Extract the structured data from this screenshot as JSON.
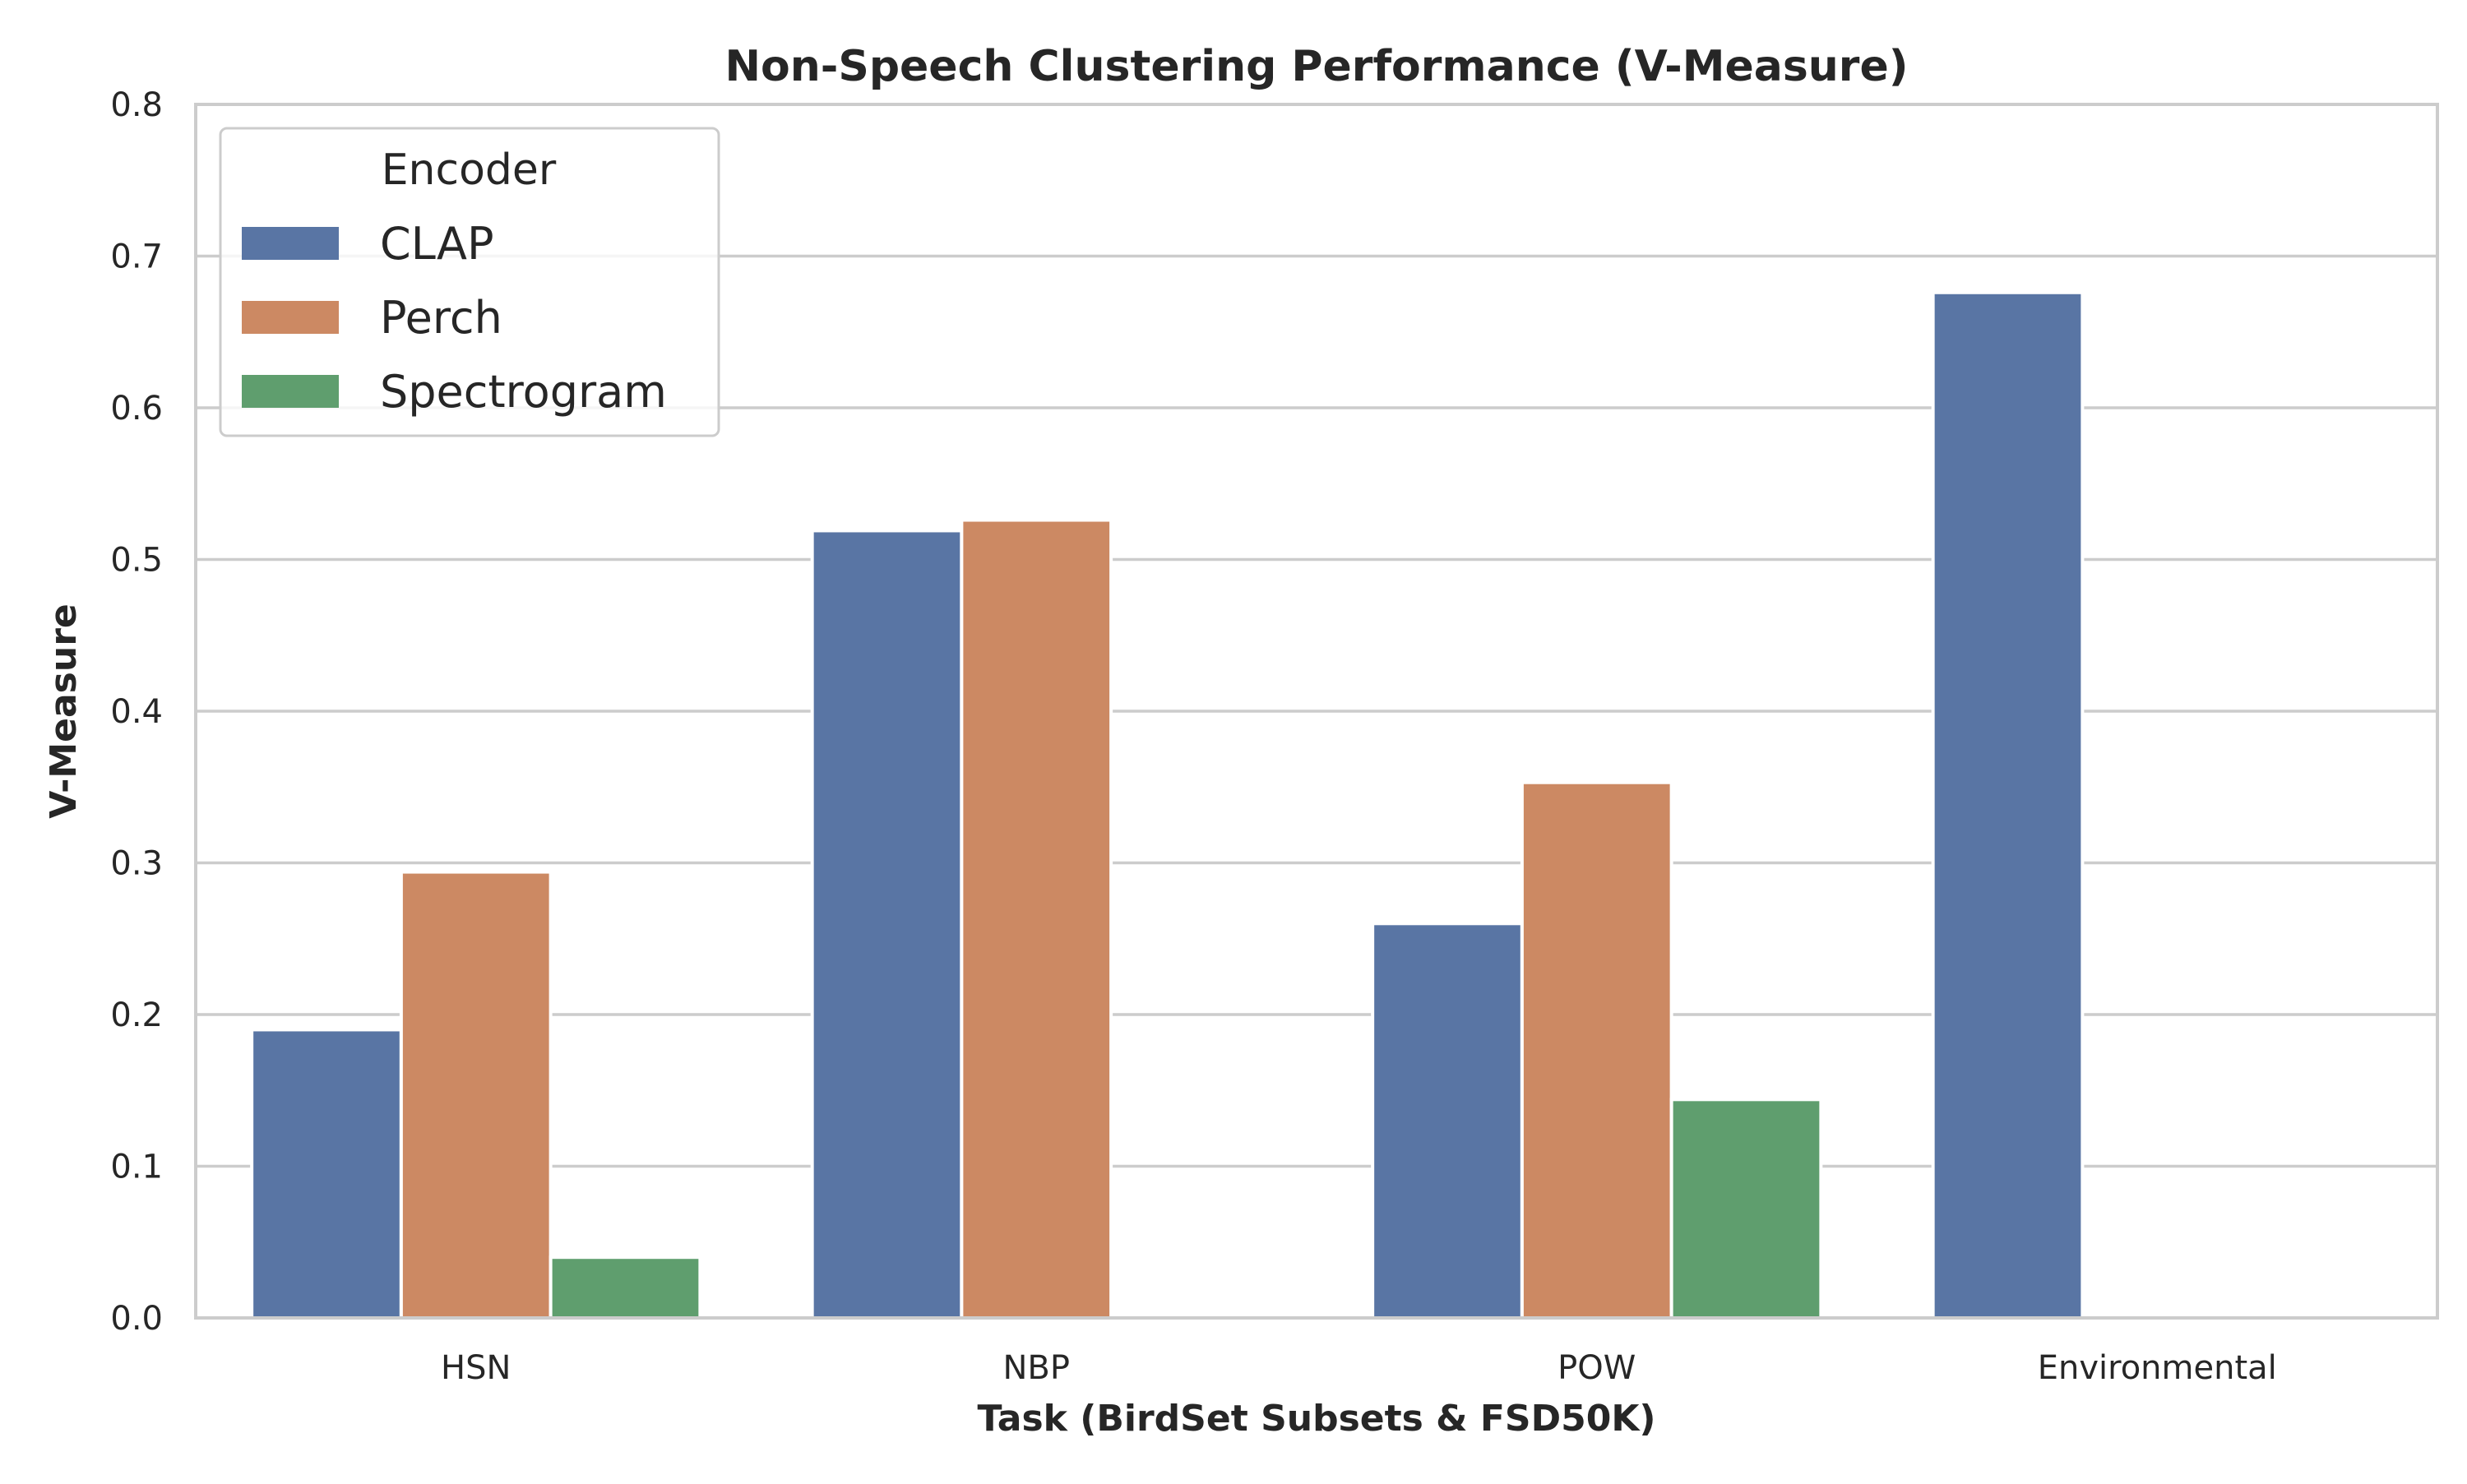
{
  "chart_data": {
    "type": "bar",
    "title": "Non-Speech Clustering Performance (V-Measure)",
    "xlabel": "Task (BirdSet Subsets & FSD50K)",
    "ylabel": "V-Measure",
    "ylim": [
      0,
      0.8
    ],
    "yticks": [
      0.0,
      0.1,
      0.2,
      0.3,
      0.4,
      0.5,
      0.6,
      0.7,
      0.8
    ],
    "ytick_labels": [
      "0.0",
      "0.1",
      "0.2",
      "0.3",
      "0.4",
      "0.5",
      "0.6",
      "0.7",
      "0.8"
    ],
    "grid": true,
    "categories": [
      "HSN",
      "NBP",
      "POW",
      "Environmental"
    ],
    "legend": {
      "title": "Encoder",
      "placement": "upper-left"
    },
    "series": [
      {
        "name": "CLAP",
        "color": "#5975a4",
        "values": [
          0.19,
          0.519,
          0.26,
          0.676
        ]
      },
      {
        "name": "Perch",
        "color": "#cc8963",
        "values": [
          0.294,
          0.526,
          0.353,
          null
        ]
      },
      {
        "name": "Spectrogram",
        "color": "#5f9e6e",
        "values": [
          0.04,
          null,
          0.144,
          null
        ]
      }
    ]
  }
}
